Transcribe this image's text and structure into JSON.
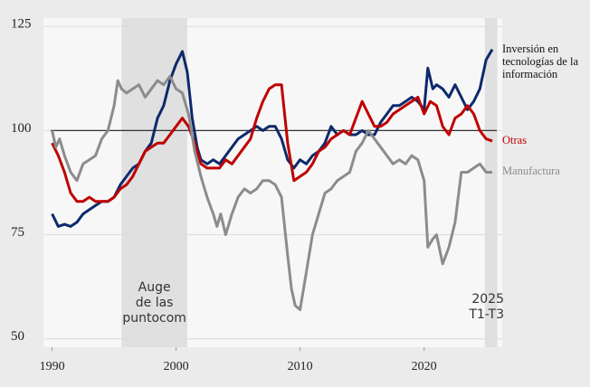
{
  "chart_data": {
    "type": "line",
    "xlim": [
      1989.3,
      2026.3
    ],
    "ylim": [
      48,
      127
    ],
    "xticks": [
      1990,
      2000,
      2010,
      2020
    ],
    "yticks": [
      50,
      75,
      100,
      125
    ],
    "grid": true,
    "reference_line": 100,
    "shaded_periods": [
      {
        "start": 1995.6,
        "end": 2000.9,
        "label": [
          "Auge",
          "de las",
          "puntocom"
        ]
      },
      {
        "start": 2024.9,
        "end": 2025.9,
        "label": [
          "2025",
          "T1-T3"
        ]
      }
    ],
    "series": [
      {
        "name": "Inversión en tecnologías de la información",
        "color": "#0d2a6b",
        "x": [
          1990,
          1990.5,
          1991,
          1991.5,
          1992,
          1992.5,
          1993,
          1993.5,
          1994,
          1994.5,
          1995,
          1995.5,
          1996,
          1996.5,
          1997,
          1997.5,
          1998,
          1998.5,
          1999,
          1999.5,
          2000,
          2000.5,
          2000.9,
          2001.3,
          2001.7,
          2002,
          2002.5,
          2003,
          2003.5,
          2004,
          2004.5,
          2005,
          2005.5,
          2006,
          2006.5,
          2007,
          2007.5,
          2008,
          2008.5,
          2009,
          2009.5,
          2010,
          2010.5,
          2011,
          2011.5,
          2012,
          2012.5,
          2013,
          2013.5,
          2014,
          2014.5,
          2015,
          2015.5,
          2016,
          2016.5,
          2017,
          2017.5,
          2018,
          2018.5,
          2019,
          2019.5,
          2020,
          2020.3,
          2020.7,
          2021,
          2021.5,
          2022,
          2022.5,
          2023,
          2023.5,
          2024,
          2024.5,
          2025,
          2025.5
        ],
        "values": [
          80,
          77,
          77.5,
          77,
          78,
          80,
          81,
          82,
          83,
          83,
          84,
          87,
          89,
          91,
          92,
          95,
          97,
          103,
          106,
          112,
          116,
          119,
          114,
          103,
          96,
          93,
          92,
          93,
          92,
          94,
          96,
          98,
          99,
          100,
          101,
          100,
          101,
          101,
          98,
          93,
          91,
          93,
          92,
          94,
          95,
          97,
          101,
          99,
          100,
          99,
          99,
          100,
          99,
          99,
          102,
          104,
          106,
          106,
          107,
          108,
          107,
          105,
          115,
          110,
          111,
          110,
          108,
          111,
          108,
          105,
          107,
          110,
          117,
          119.5
        ]
      },
      {
        "name": "Otras",
        "color": "#c00000",
        "x": [
          1990,
          1990.5,
          1991,
          1991.5,
          1992,
          1992.5,
          1993,
          1993.5,
          1994,
          1994.5,
          1995,
          1995.5,
          1996,
          1996.5,
          1997,
          1997.5,
          1998,
          1998.5,
          1999,
          1999.5,
          2000,
          2000.5,
          2001,
          2001.5,
          2002,
          2002.5,
          2003,
          2003.5,
          2004,
          2004.5,
          2005,
          2005.5,
          2006,
          2006.5,
          2007,
          2007.5,
          2008,
          2008.5,
          2009,
          2009.5,
          2010,
          2010.5,
          2011,
          2011.5,
          2012,
          2012.5,
          2013,
          2013.5,
          2014,
          2014.5,
          2015,
          2015.5,
          2016,
          2016.5,
          2017,
          2017.5,
          2018,
          2018.5,
          2019,
          2019.5,
          2020,
          2020.5,
          2021,
          2021.5,
          2022,
          2022.5,
          2023,
          2023.5,
          2024,
          2024.5,
          2025,
          2025.5
        ],
        "values": [
          97,
          94,
          90,
          85,
          83,
          83,
          84,
          83,
          83,
          83,
          84,
          86,
          87,
          89,
          92,
          95,
          96,
          97,
          97,
          99,
          101,
          103,
          101,
          97,
          92,
          91,
          91,
          91,
          93,
          92,
          94,
          96,
          98,
          103,
          107,
          110,
          111,
          111,
          97,
          88,
          89,
          90,
          92,
          95,
          96,
          98,
          99,
          100,
          99,
          103,
          107,
          104,
          101,
          101,
          102,
          104,
          105,
          106,
          107,
          108,
          104,
          107,
          106,
          101,
          99,
          103,
          104,
          106,
          104,
          100,
          98,
          97.5
        ]
      },
      {
        "name": "Manufactura",
        "color": "#8c8c8c",
        "x": [
          1990,
          1990.3,
          1990.6,
          1991,
          1991.5,
          1992,
          1992.5,
          1993,
          1993.5,
          1994,
          1994.5,
          1995,
          1995.3,
          1995.6,
          1996,
          1996.5,
          1997,
          1997.5,
          1998,
          1998.5,
          1999,
          1999.5,
          2000,
          2000.5,
          2001,
          2001.5,
          2002,
          2002.5,
          2003,
          2003.3,
          2003.6,
          2004,
          2004.5,
          2005,
          2005.5,
          2006,
          2006.5,
          2007,
          2007.5,
          2008,
          2008.5,
          2009,
          2009.3,
          2009.6,
          2010,
          2010.5,
          2011,
          2011.5,
          2012,
          2012.5,
          2013,
          2013.5,
          2014,
          2014.5,
          2015,
          2015.5,
          2016,
          2016.5,
          2017,
          2017.5,
          2018,
          2018.5,
          2019,
          2019.5,
          2020,
          2020.3,
          2020.7,
          2021,
          2021.5,
          2022,
          2022.5,
          2023,
          2023.5,
          2024,
          2024.5,
          2025,
          2025.5
        ],
        "values": [
          100,
          96,
          98,
          94,
          90,
          88,
          92,
          93,
          94,
          98,
          100,
          106,
          112,
          110,
          109,
          110,
          111,
          108,
          110,
          112,
          111,
          113,
          110,
          109,
          104,
          95,
          89,
          84,
          80,
          77,
          80,
          75,
          80,
          84,
          86,
          85,
          86,
          88,
          88,
          87,
          84,
          70,
          62,
          58,
          57,
          66,
          75,
          80,
          85,
          86,
          88,
          89,
          90,
          95,
          97,
          100,
          98,
          96,
          94,
          92,
          93,
          92,
          94,
          93,
          88,
          72,
          74,
          75,
          68,
          72,
          78,
          90,
          90,
          91,
          92,
          90,
          90
        ]
      }
    ]
  }
}
